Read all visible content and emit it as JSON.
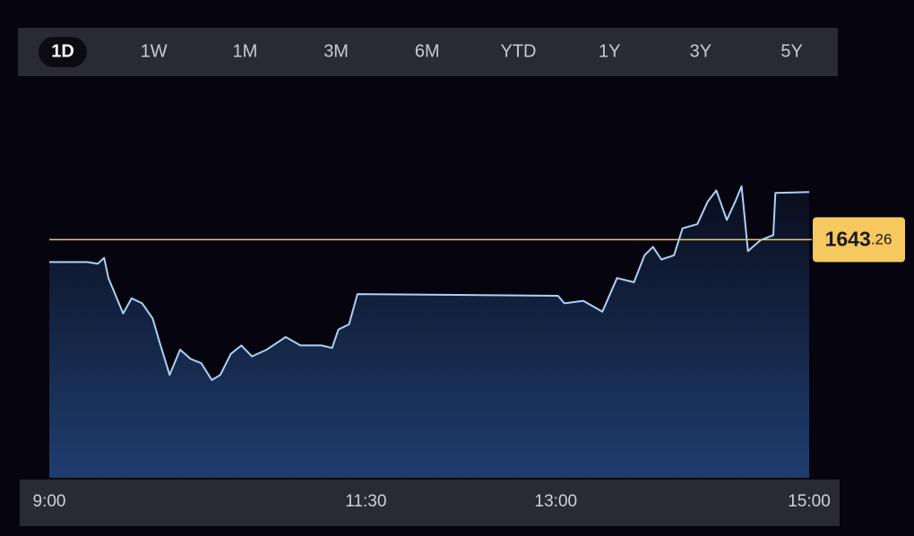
{
  "tabs": [
    "1D",
    "1W",
    "1M",
    "3M",
    "6M",
    "YTD",
    "1Y",
    "3Y",
    "5Y"
  ],
  "active_tab": 0,
  "chart_data": {
    "type": "line",
    "color": "#a9d3f5",
    "reference_line": 1643.26,
    "reference_color": "#f5c860",
    "x": [
      0,
      18,
      23,
      26,
      28,
      35,
      39,
      44,
      49,
      52,
      57,
      62,
      67,
      72,
      77,
      81,
      86,
      91,
      96,
      103,
      112,
      119,
      129,
      134,
      137,
      142,
      146,
      241,
      244,
      253,
      262,
      269,
      277,
      282,
      286,
      290,
      296,
      300,
      307,
      312,
      316,
      321,
      325,
      328,
      331,
      337,
      343,
      344,
      360
    ],
    "values": [
      1640.6,
      1640.6,
      1640.4,
      1641.1,
      1638.7,
      1634.5,
      1636.3,
      1635.7,
      1633.9,
      1631.3,
      1627.2,
      1630.2,
      1629.1,
      1628.6,
      1626.6,
      1627.2,
      1629.7,
      1630.7,
      1629.4,
      1630.2,
      1631.7,
      1630.7,
      1630.7,
      1630.4,
      1632.6,
      1633.2,
      1636.8,
      1636.6,
      1635.7,
      1636.0,
      1634.7,
      1638.7,
      1638.2,
      1641.4,
      1642.4,
      1640.9,
      1641.4,
      1644.6,
      1645.1,
      1647.8,
      1649.1,
      1645.6,
      1647.8,
      1649.6,
      1641.9,
      1643.2,
      1643.8,
      1648.8,
      1648.9
    ],
    "xlim": [
      0,
      360
    ],
    "xticks": [
      {
        "value": 0,
        "label": "9:00"
      },
      {
        "value": 150,
        "label": "11:30"
      },
      {
        "value": 240,
        "label": "13:00"
      },
      {
        "value": 360,
        "label": "15:00"
      }
    ],
    "ylim": [
      1615,
      1660
    ]
  }
}
